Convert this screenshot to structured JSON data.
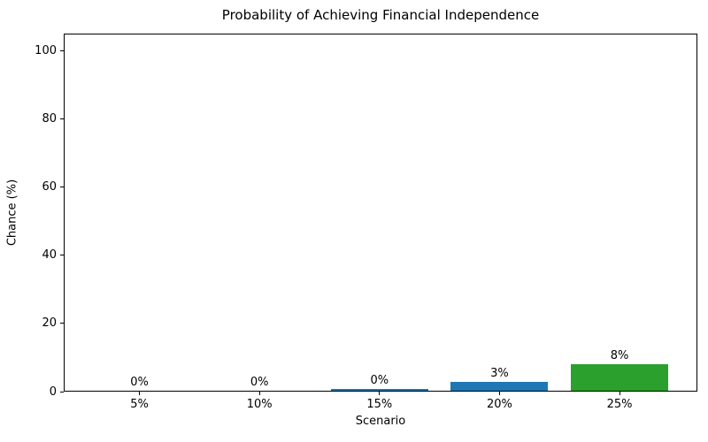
{
  "chart_data": {
    "type": "bar",
    "title": "Probability of Achieving Financial Independence",
    "xlabel": "Scenario",
    "ylabel": "Chance (%)",
    "categories": [
      "5%",
      "10%",
      "15%",
      "20%",
      "25%"
    ],
    "values": [
      0,
      0,
      0.4,
      2.6,
      7.8
    ],
    "bar_labels": [
      "0%",
      "0%",
      "0%",
      "3%",
      "8%"
    ],
    "bar_colors": [
      "#1f77b4",
      "#1f77b4",
      "#1f77b4",
      "#1f77b4",
      "#2ca02c"
    ],
    "yticks": [
      0,
      20,
      40,
      60,
      80,
      100
    ],
    "ylim": [
      0,
      105
    ],
    "grid": false,
    "legend_position": "none",
    "axis_color": "#000000",
    "background_color": "#ffffff"
  }
}
